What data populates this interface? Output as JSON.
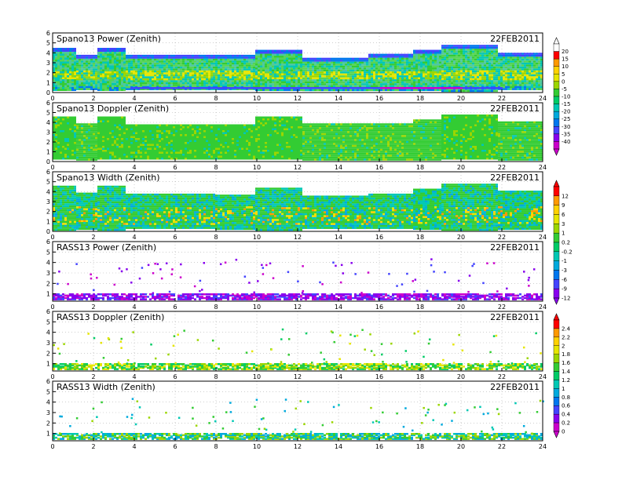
{
  "date": "22FEB2011",
  "colors": {
    "set1": [
      "#ffffff",
      "#ff0000",
      "#ff9900",
      "#ffd200",
      "#e6e600",
      "#9bd600",
      "#33cc33",
      "#00cc66",
      "#00c8b4",
      "#00aadd",
      "#0077ee",
      "#4444ff",
      "#8800ee",
      "#cc00cc"
    ],
    "set2": [
      "#ff0000",
      "#ff9900",
      "#ffd200",
      "#e6e600",
      "#9bd600",
      "#33cc33",
      "#00cc66",
      "#00c8b4",
      "#00aadd",
      "#0077ee",
      "#4444ff",
      "#8800ee"
    ],
    "set3": [
      "#ff0000",
      "#ff9900",
      "#ffd200",
      "#e6e600",
      "#9bd600",
      "#33cc33",
      "#00cc66",
      "#00c8b4",
      "#00aadd",
      "#0077ee",
      "#4444ff",
      "#8800ee",
      "#cc00cc"
    ],
    "outline": "#000000"
  },
  "colorbars": [
    {
      "id": "spano-power-doppler",
      "labels": [
        "20",
        "15",
        "10",
        "5",
        "0",
        "-5",
        "-10",
        "-15",
        "-20",
        "-25",
        "-30",
        "-35",
        "-40"
      ]
    },
    {
      "id": "spano-width-rass-power",
      "labels": [
        "12",
        "9",
        "6",
        "3",
        "1",
        "0.2",
        "-0.2",
        "-1",
        "-3",
        "-6",
        "-9",
        "-12"
      ]
    },
    {
      "id": "rass-doppler-width",
      "labels": [
        "2.4",
        "2.2",
        "2",
        "1.8",
        "1.6",
        "1.4",
        "1.2",
        "1",
        "0.8",
        "0.6",
        "0.4",
        "0.2",
        "0"
      ]
    }
  ],
  "chart_data": [
    {
      "type": "heatmap",
      "title": "Spano13 Power (Zenith)",
      "x_ticks": [
        "0",
        "2",
        "4",
        "6",
        "8",
        "10",
        "12",
        "14",
        "16",
        "18",
        "20",
        "22",
        "24"
      ],
      "y_ticks": [
        "0",
        "1",
        "2",
        "3",
        "4",
        "5",
        "6"
      ],
      "xlim": [
        0,
        24
      ],
      "ylim": [
        0,
        6
      ],
      "colorbar": "spano-power-doppler",
      "top_height_km": [
        [
          0,
          4.5
        ],
        [
          1.1,
          3.8
        ],
        [
          2.1,
          4.5
        ],
        [
          3.5,
          3.8
        ],
        [
          7.9,
          3.8
        ],
        [
          9.9,
          4.3
        ],
        [
          12.2,
          3.5
        ],
        [
          15.4,
          3.9
        ],
        [
          17.6,
          4.3
        ],
        [
          19.0,
          4.8
        ],
        [
          21.7,
          4.0
        ],
        [
          23.9,
          4.0
        ]
      ]
    },
    {
      "type": "heatmap",
      "title": "Spano13 Doppler (Zenith)",
      "x_ticks": [
        "0",
        "2",
        "4",
        "6",
        "8",
        "10",
        "12",
        "14",
        "16",
        "18",
        "20",
        "22",
        "24"
      ],
      "y_ticks": [
        "0",
        "1",
        "2",
        "3",
        "4",
        "5",
        "6"
      ],
      "xlim": [
        0,
        24
      ],
      "ylim": [
        0,
        6
      ],
      "colorbar": "spano-power-doppler",
      "top_height_km": [
        [
          0,
          4.6
        ],
        [
          1.1,
          3.9
        ],
        [
          2.1,
          4.6
        ],
        [
          3.5,
          3.8
        ],
        [
          7.9,
          3.8
        ],
        [
          9.9,
          4.6
        ],
        [
          12.2,
          3.9
        ],
        [
          15.4,
          3.9
        ],
        [
          17.6,
          4.3
        ],
        [
          19.0,
          4.8
        ],
        [
          21.7,
          4.1
        ],
        [
          23.9,
          4.0
        ]
      ]
    },
    {
      "type": "heatmap",
      "title": "Spano13 Width (Zenith)",
      "x_ticks": [
        "0",
        "2",
        "4",
        "6",
        "8",
        "10",
        "12",
        "14",
        "16",
        "18",
        "20",
        "22",
        "24"
      ],
      "y_ticks": [
        "0",
        "1",
        "2",
        "3",
        "4",
        "5",
        "6"
      ],
      "xlim": [
        0,
        24
      ],
      "ylim": [
        0,
        6
      ],
      "colorbar": "spano-width-rass-power",
      "top_height_km": [
        [
          0,
          4.6
        ],
        [
          1.1,
          3.9
        ],
        [
          2.1,
          4.6
        ],
        [
          3.5,
          3.8
        ],
        [
          7.9,
          3.7
        ],
        [
          9.9,
          4.4
        ],
        [
          12.2,
          3.6
        ],
        [
          15.4,
          3.8
        ],
        [
          17.6,
          4.3
        ],
        [
          19.0,
          4.8
        ],
        [
          21.7,
          4.1
        ],
        [
          23.9,
          4.0
        ]
      ]
    },
    {
      "type": "heatmap",
      "title": "RASS13 Power (Zenith)",
      "x_ticks": [
        "0",
        "2",
        "4",
        "6",
        "8",
        "10",
        "12",
        "14",
        "16",
        "18",
        "20",
        "22",
        "24"
      ],
      "y_ticks": [
        "1",
        "2",
        "3",
        "4",
        "5",
        "6"
      ],
      "xlim": [
        0,
        24
      ],
      "ylim": [
        0.3,
        6
      ],
      "colorbar": "spano-width-rass-power",
      "dense_layer_km": [
        0.45,
        1.0
      ]
    },
    {
      "type": "heatmap",
      "title": "RASS13 Doppler (Zenith)",
      "x_ticks": [
        "0",
        "2",
        "4",
        "6",
        "8",
        "10",
        "12",
        "14",
        "16",
        "18",
        "20",
        "22",
        "24"
      ],
      "y_ticks": [
        "1",
        "2",
        "3",
        "4",
        "5",
        "6"
      ],
      "xlim": [
        0,
        24
      ],
      "ylim": [
        0.3,
        6
      ],
      "colorbar": "rass-doppler-width",
      "dense_layer_km": [
        0.45,
        1.0
      ]
    },
    {
      "type": "heatmap",
      "title": "RASS13 Width (Zenith)",
      "x_ticks": [
        "0",
        "2",
        "4",
        "6",
        "8",
        "10",
        "12",
        "14",
        "16",
        "18",
        "20",
        "22",
        "24"
      ],
      "y_ticks": [
        "1",
        "2",
        "3",
        "4",
        "5",
        "6"
      ],
      "xlim": [
        0,
        24
      ],
      "ylim": [
        0.3,
        6
      ],
      "colorbar": "rass-doppler-width",
      "dense_layer_km": [
        0.45,
        1.0
      ]
    }
  ]
}
